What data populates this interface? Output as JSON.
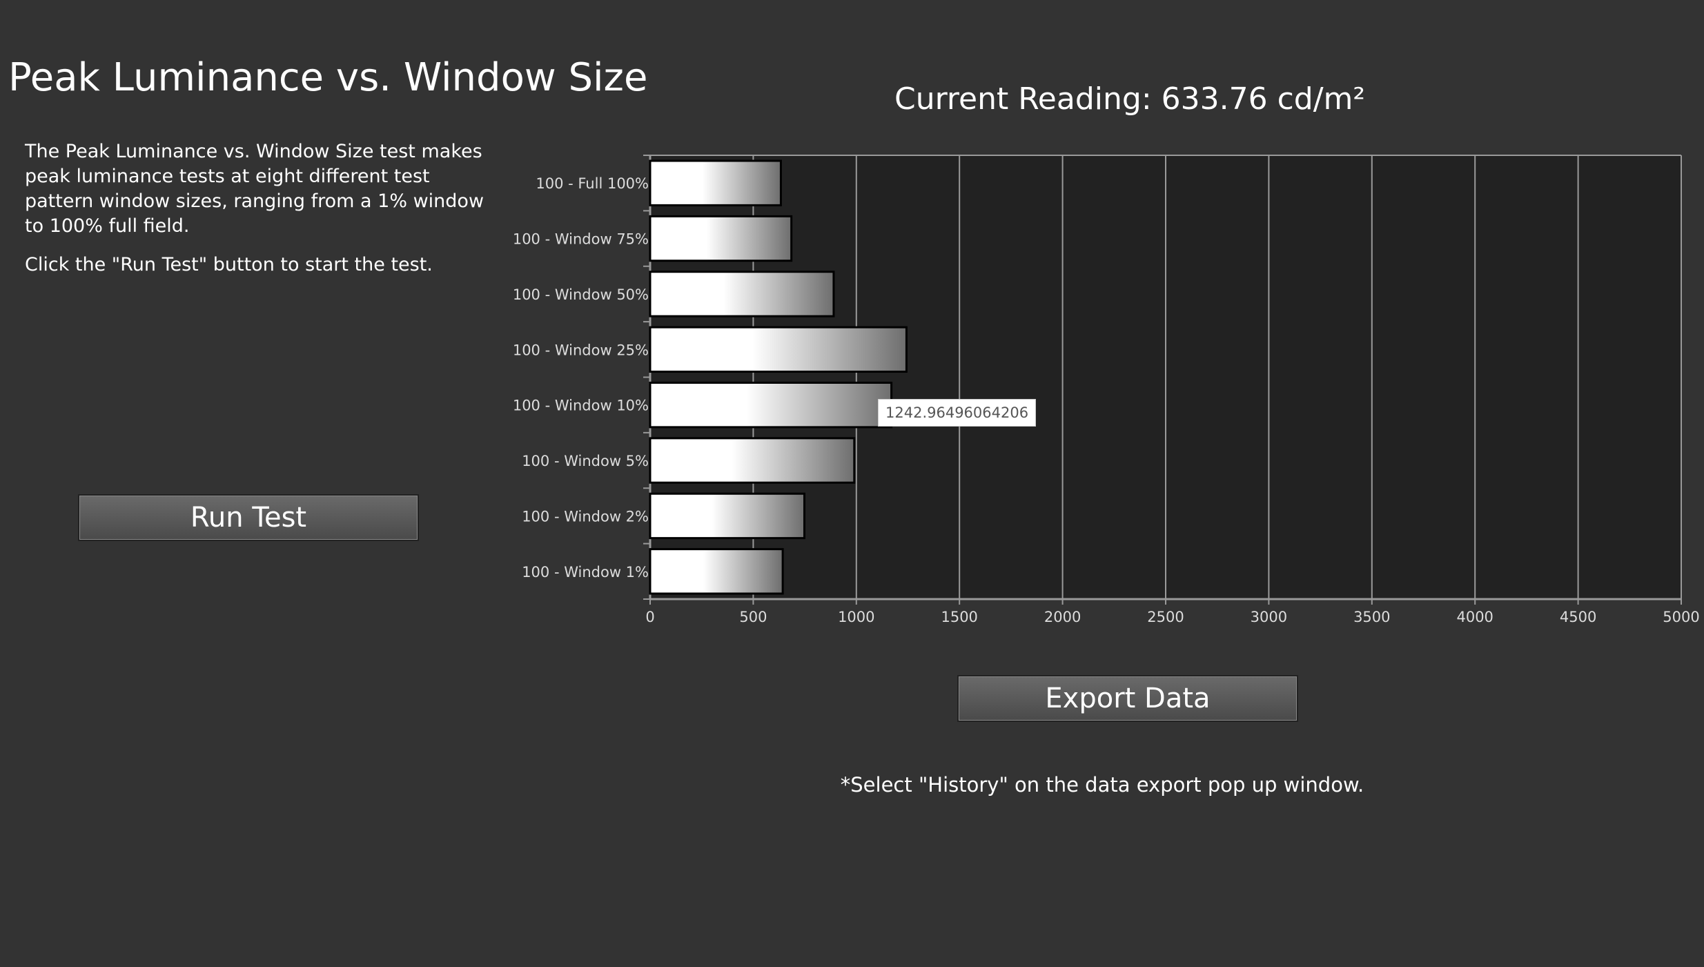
{
  "page": {
    "title": "Peak Luminance vs. Window Size",
    "current_reading": "Current Reading: 633.76 cd/m²",
    "description": [
      "The Peak Luminance vs. Window Size test makes peak luminance tests at eight different test pattern window sizes, ranging from a 1% window to 100% full field.",
      "Click the \"Run Test\" button to start the test."
    ],
    "run_button": "Run Test",
    "export_button": "Export  Data",
    "note": "*Select \"History\" on the data export pop up window.",
    "tooltip": "1242.96496064206"
  },
  "chart_data": {
    "type": "bar",
    "orientation": "horizontal",
    "categories": [
      "100 - Full  100%",
      "100 - Window 75%",
      "100 - Window 50%",
      "100 - Window 25%",
      "100 - Window 10%",
      "100 - Window  5%",
      "100 - Window  2%",
      "100 - Window  1%"
    ],
    "values": [
      634,
      685,
      890,
      1243,
      1170,
      990,
      748,
      643
    ],
    "xlim": [
      0,
      5000
    ],
    "xticks": [
      0,
      500,
      1000,
      1500,
      2000,
      2500,
      3000,
      3500,
      4000,
      4500,
      5000
    ],
    "grid": true,
    "colors": {
      "plot_bg": "#222222",
      "grid": "#9a9a9a",
      "bar_start": "#ffffff",
      "bar_end": "#6e6e6e"
    }
  }
}
